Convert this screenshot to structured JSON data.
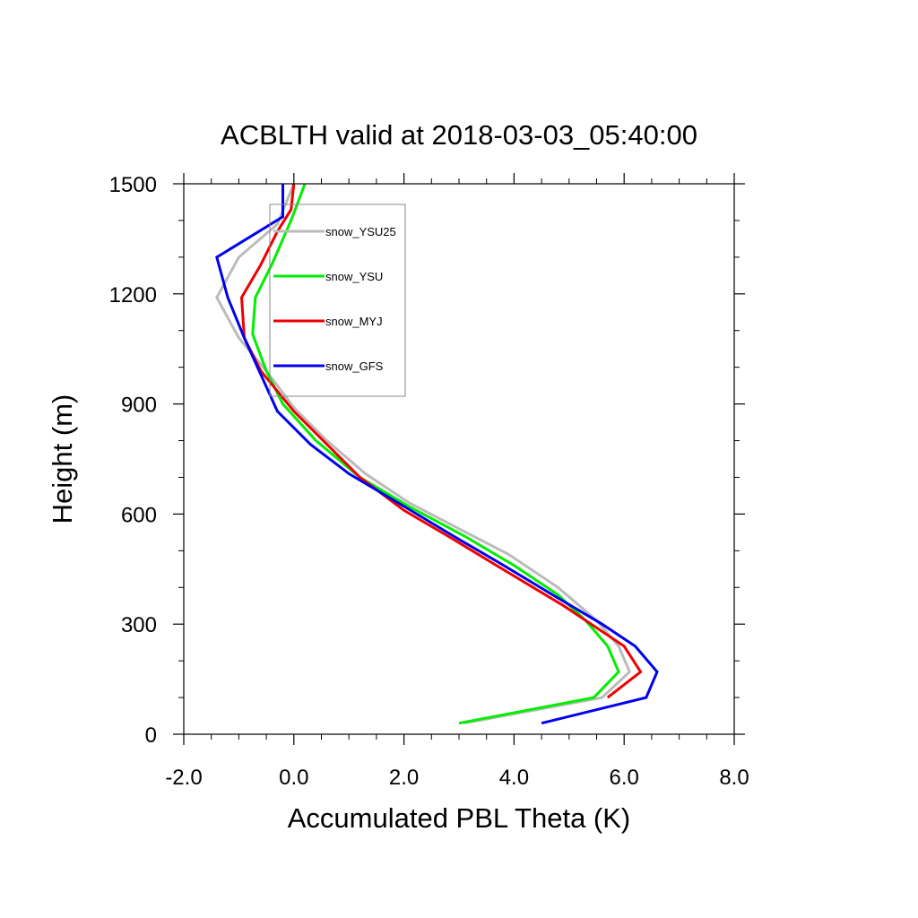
{
  "chart_data": {
    "type": "line",
    "title": "ACBLTH valid at 2018-03-03_05:40:00",
    "xlabel": "Accumulated PBL Theta (K)",
    "ylabel": "Height (m)",
    "xlim": [
      -2.0,
      8.0
    ],
    "ylim": [
      0,
      1500
    ],
    "xticks": [
      -2.0,
      0.0,
      2.0,
      4.0,
      6.0,
      8.0
    ],
    "xtick_labels": [
      "-2.0",
      "0.0",
      "2.0",
      "4.0",
      "6.0",
      "8.0"
    ],
    "yticks": [
      0,
      300,
      600,
      900,
      1200,
      1500
    ],
    "ytick_labels": [
      "0",
      "300",
      "600",
      "900",
      "1200",
      "1500"
    ],
    "grid": false,
    "legend_position": "top-left",
    "series": [
      {
        "name": "snow_YSU25",
        "color": "#bbbbbb",
        "points": [
          [
            3.1,
            30
          ],
          [
            5.6,
            100
          ],
          [
            6.1,
            170
          ],
          [
            5.9,
            240
          ],
          [
            5.5,
            310
          ],
          [
            4.8,
            400
          ],
          [
            3.9,
            490
          ],
          [
            3.0,
            560
          ],
          [
            2.1,
            630
          ],
          [
            1.3,
            710
          ],
          [
            0.6,
            800
          ],
          [
            0.0,
            890
          ],
          [
            -0.5,
            990
          ],
          [
            -1.0,
            1080
          ],
          [
            -1.4,
            1190
          ],
          [
            -1.0,
            1300
          ],
          [
            -0.3,
            1390
          ],
          [
            0.0,
            1500
          ]
        ]
      },
      {
        "name": "snow_YSU",
        "color": "#00ee00",
        "points": [
          [
            3.0,
            30
          ],
          [
            5.45,
            100
          ],
          [
            5.9,
            170
          ],
          [
            5.7,
            240
          ],
          [
            5.3,
            310
          ],
          [
            4.8,
            380
          ],
          [
            4.0,
            460
          ],
          [
            3.1,
            540
          ],
          [
            2.1,
            620
          ],
          [
            1.2,
            700
          ],
          [
            0.4,
            800
          ],
          [
            -0.2,
            900
          ],
          [
            -0.5,
            990
          ],
          [
            -0.75,
            1090
          ],
          [
            -0.7,
            1190
          ],
          [
            -0.4,
            1280
          ],
          [
            -0.05,
            1400
          ],
          [
            0.2,
            1500
          ]
        ]
      },
      {
        "name": "snow_MYJ",
        "color": "#ee0000",
        "points": [
          [
            5.7,
            100
          ],
          [
            6.3,
            170
          ],
          [
            6.0,
            240
          ],
          [
            5.5,
            290
          ],
          [
            4.9,
            350
          ],
          [
            3.9,
            440
          ],
          [
            2.8,
            540
          ],
          [
            2.0,
            610
          ],
          [
            1.2,
            700
          ],
          [
            0.6,
            790
          ],
          [
            0.0,
            880
          ],
          [
            -0.6,
            990
          ],
          [
            -0.9,
            1080
          ],
          [
            -0.95,
            1190
          ],
          [
            -0.6,
            1280
          ],
          [
            -0.3,
            1370
          ],
          [
            -0.05,
            1430
          ],
          [
            0.0,
            1500
          ]
        ]
      },
      {
        "name": "snow_GFS",
        "color": "#0000ee",
        "points": [
          [
            4.5,
            30
          ],
          [
            6.4,
            100
          ],
          [
            6.6,
            170
          ],
          [
            6.2,
            240
          ],
          [
            5.6,
            300
          ],
          [
            4.7,
            380
          ],
          [
            3.7,
            470
          ],
          [
            2.9,
            540
          ],
          [
            1.9,
            630
          ],
          [
            1.0,
            710
          ],
          [
            0.3,
            790
          ],
          [
            -0.3,
            880
          ],
          [
            -0.9,
            1080
          ],
          [
            -1.2,
            1190
          ],
          [
            -1.4,
            1300
          ],
          [
            -0.2,
            1410
          ],
          [
            -0.2,
            1500
          ]
        ]
      }
    ]
  }
}
